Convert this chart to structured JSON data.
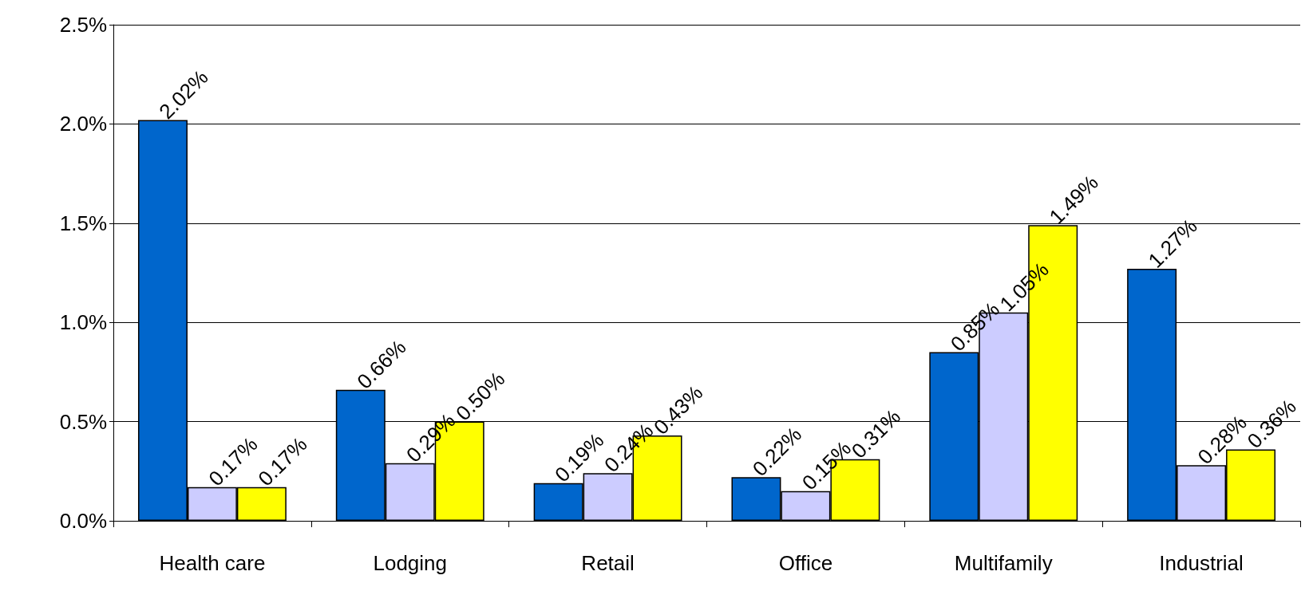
{
  "chart_data": {
    "type": "bar",
    "categories": [
      "Health care",
      "Lodging",
      "Retail",
      "Office",
      "Multifamily",
      "Industrial"
    ],
    "series": [
      {
        "color": "#0066cc",
        "values": [
          2.02,
          0.66,
          0.19,
          0.22,
          0.85,
          1.27
        ],
        "value_labels": [
          "2.02%",
          "0.66%",
          "0.19%",
          "0.22%",
          "0.85%",
          "1.27%"
        ]
      },
      {
        "color": "#ccccff",
        "values": [
          0.17,
          0.29,
          0.24,
          0.15,
          1.05,
          0.28
        ],
        "value_labels": [
          "0.17%",
          "0.29%",
          "0.24%",
          "0.15%",
          "1.05%",
          "0.28%"
        ]
      },
      {
        "color": "#ffff00",
        "values": [
          0.17,
          0.5,
          0.43,
          0.31,
          1.49,
          0.36
        ],
        "value_labels": [
          "0.17%",
          "0.50%",
          "0.43%",
          "0.31%",
          "1.49%",
          "0.36%"
        ]
      }
    ],
    "ylim": [
      0,
      2.5
    ],
    "yticks": [
      {
        "value": 0,
        "label": "0.0%"
      },
      {
        "value": 0.5,
        "label": "0.5%"
      },
      {
        "value": 1,
        "label": "1.0%"
      },
      {
        "value": 1.5,
        "label": "1.5%"
      },
      {
        "value": 2,
        "label": "2.0%"
      },
      {
        "value": 2.5,
        "label": "2.5%"
      }
    ],
    "grid": "y"
  }
}
